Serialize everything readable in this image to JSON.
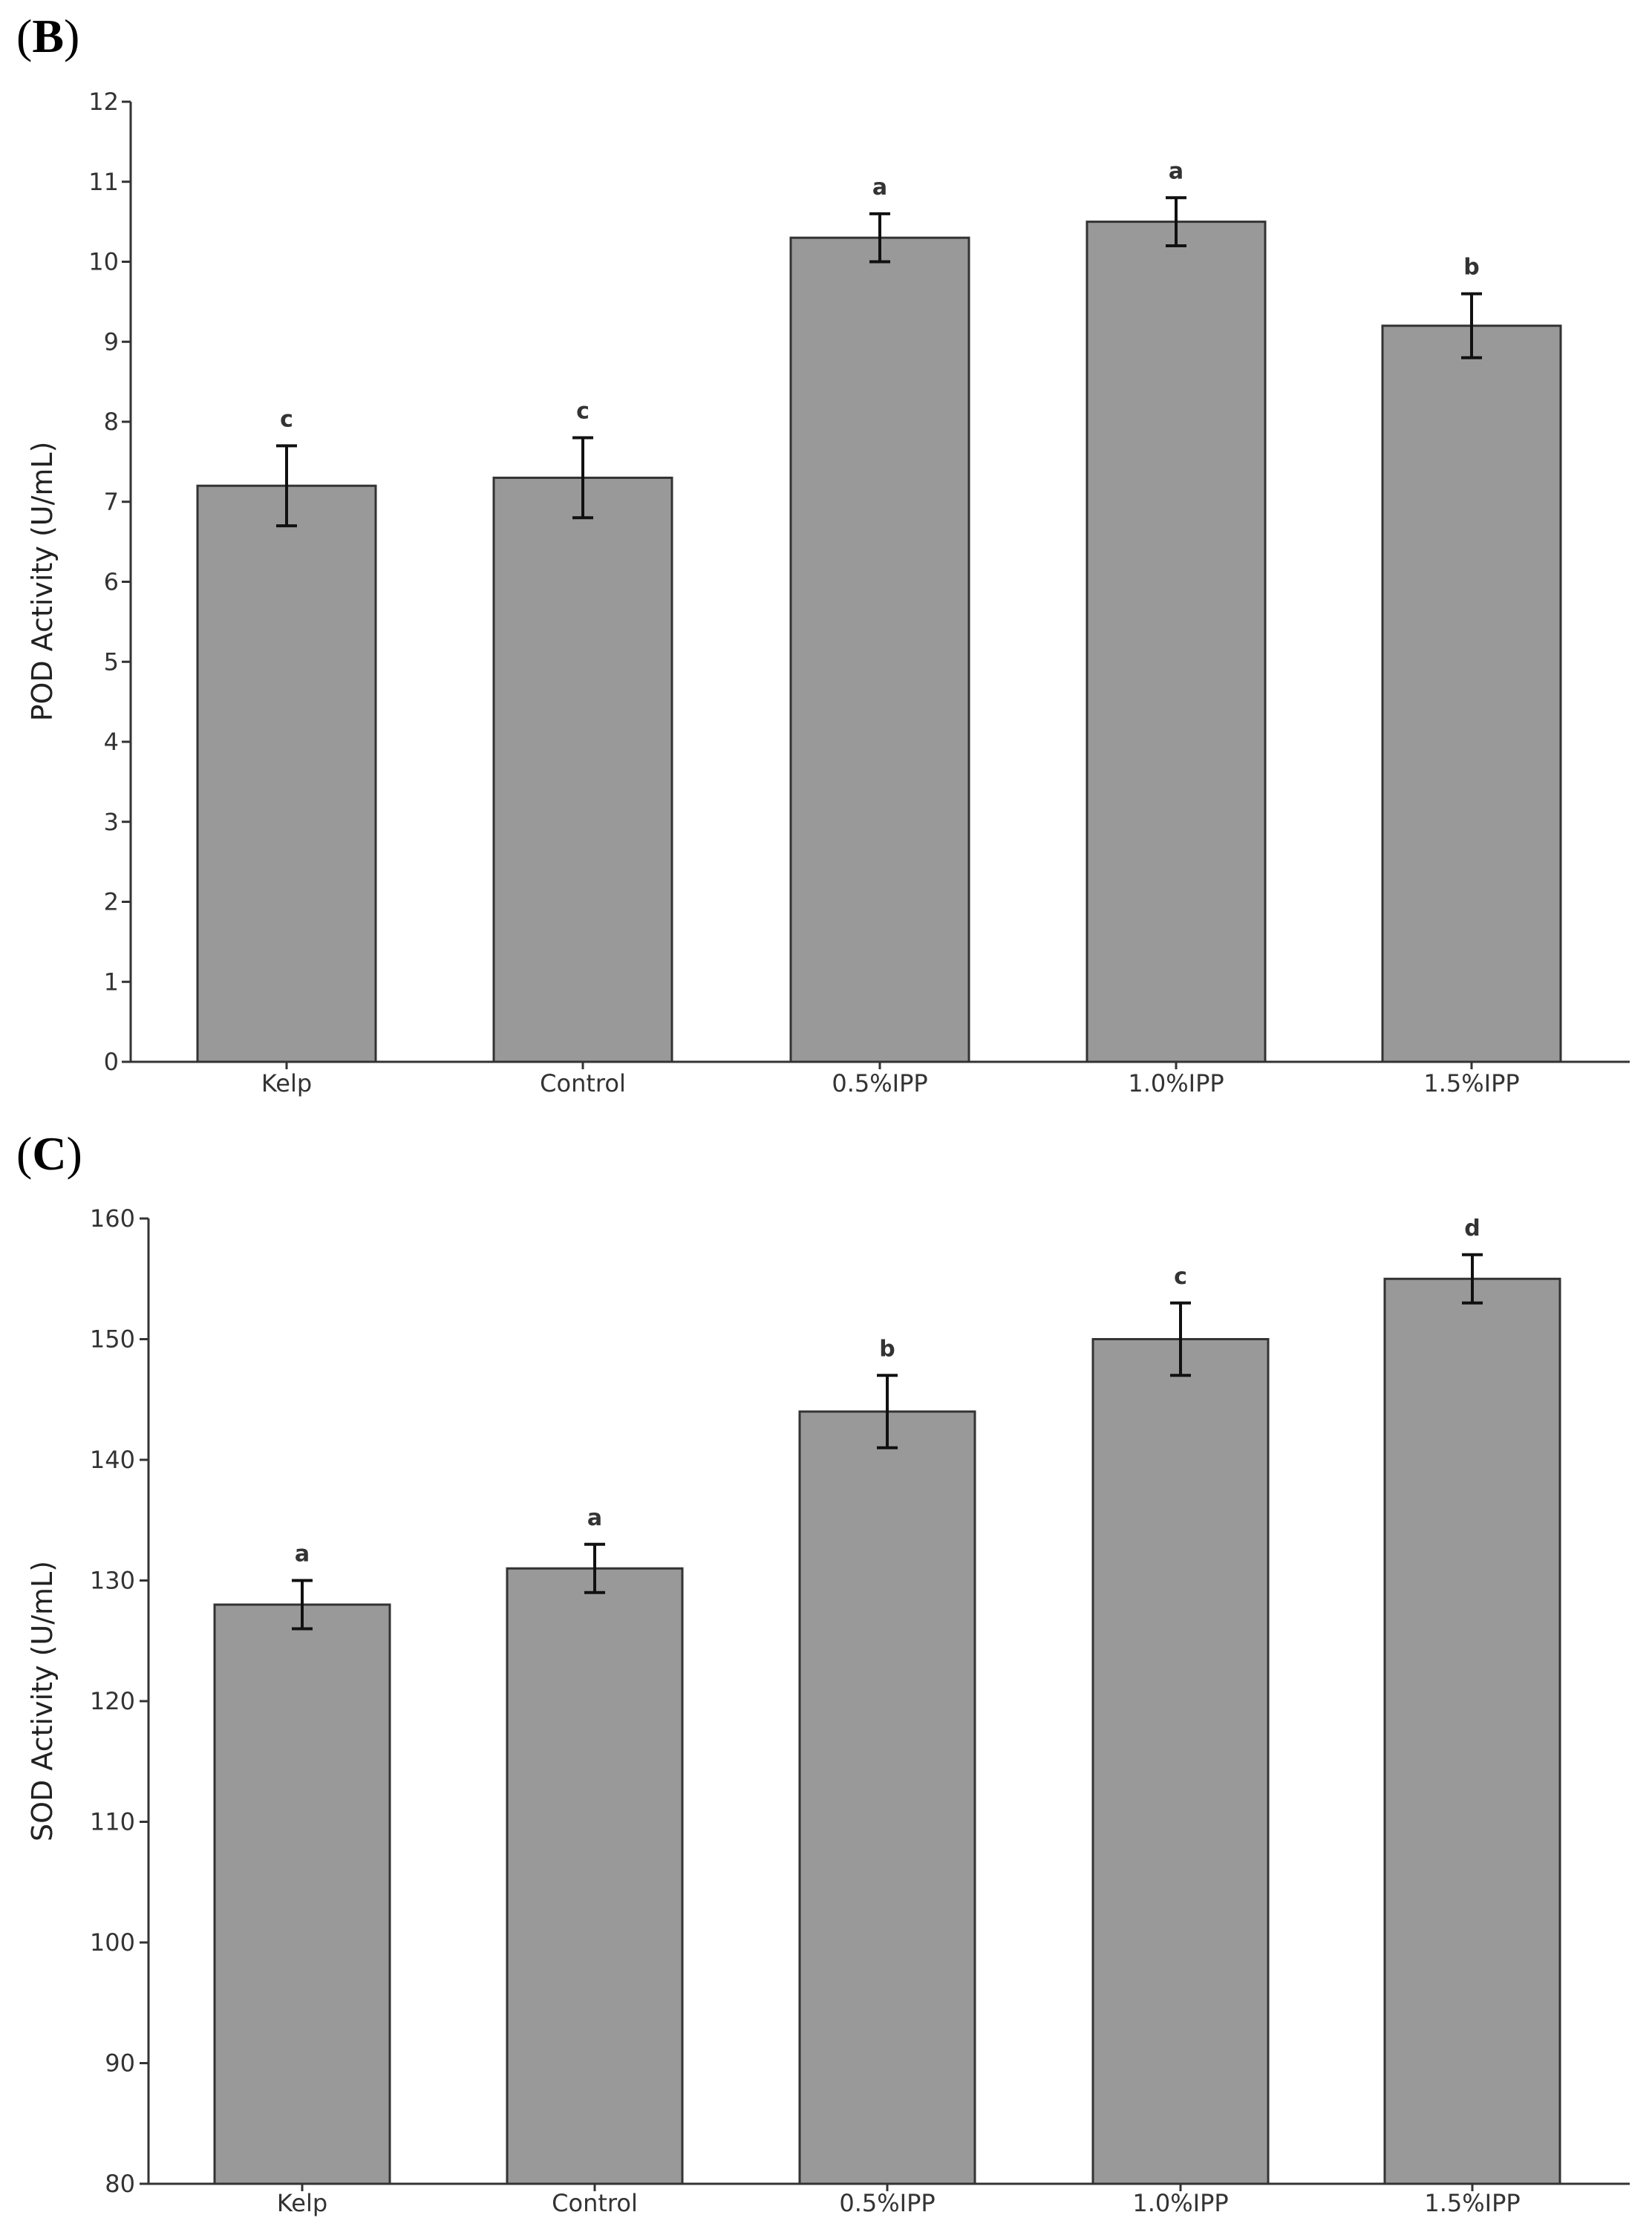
{
  "chart_data": [
    {
      "type": "bar",
      "panel_label": "B",
      "title": "",
      "xlabel": "",
      "ylabel": "POD Activity (U/mL)",
      "categories": [
        "Kelp",
        "Control",
        "0.5%IPP",
        "1.0%IPP",
        "1.5%IPP"
      ],
      "values": [
        7.2,
        7.3,
        10.3,
        10.5,
        9.2
      ],
      "errors": [
        0.5,
        0.5,
        0.3,
        0.3,
        0.4
      ],
      "significance": [
        "c",
        "c",
        "a",
        "a",
        "b"
      ],
      "ylim": [
        0,
        12
      ],
      "yticks": [
        0,
        1,
        2,
        3,
        4,
        5,
        6,
        7,
        8,
        9,
        10,
        11,
        12
      ],
      "bar_color": "#999999",
      "edge_color": "#333333"
    },
    {
      "type": "bar",
      "panel_label": "C",
      "title": "",
      "xlabel": "",
      "ylabel": "SOD Activity (U/mL)",
      "categories": [
        "Kelp",
        "Control",
        "0.5%IPP",
        "1.0%IPP",
        "1.5%IPP"
      ],
      "values": [
        128,
        131,
        144,
        150,
        155
      ],
      "errors": [
        2,
        2,
        3,
        3,
        2
      ],
      "significance": [
        "a",
        "a",
        "b",
        "c",
        "d"
      ],
      "ylim": [
        80,
        160
      ],
      "yticks": [
        80,
        90,
        100,
        110,
        120,
        130,
        140,
        150,
        160
      ],
      "bar_color": "#999999",
      "edge_color": "#333333"
    }
  ]
}
